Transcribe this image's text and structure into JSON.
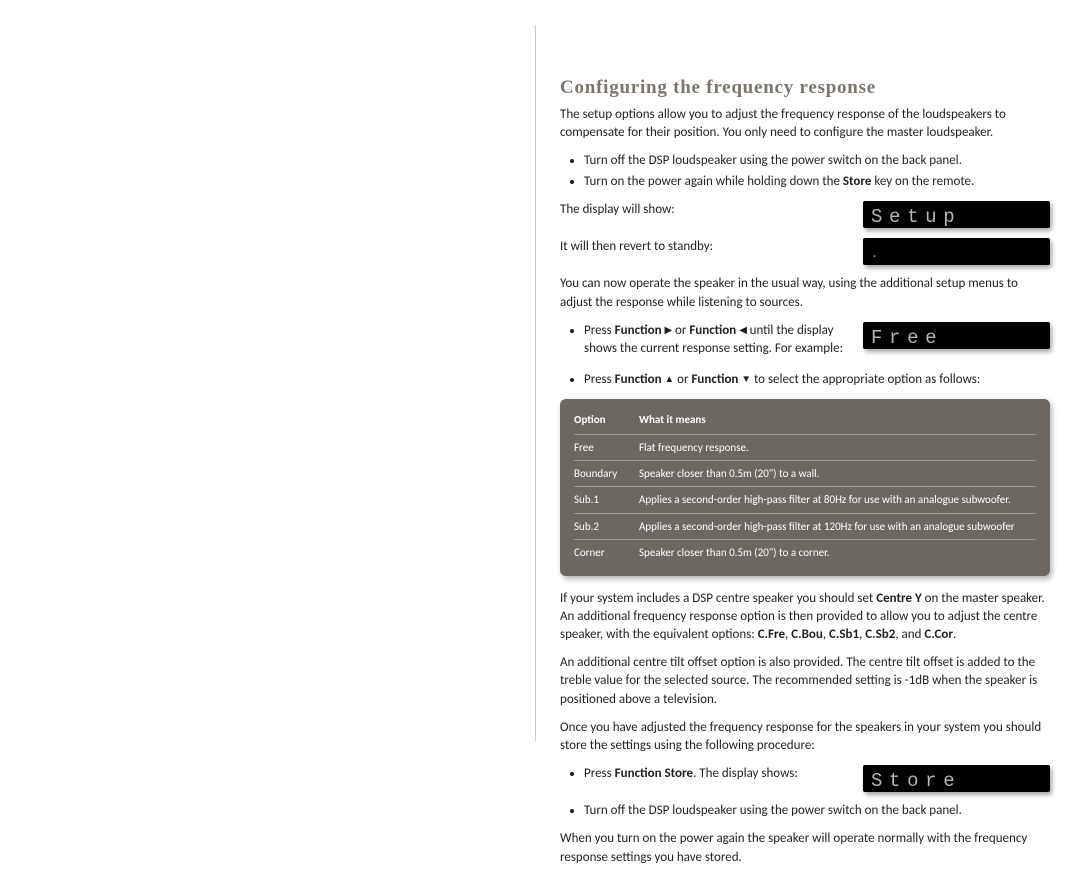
{
  "colors": {
    "heading": "#7c756d",
    "text": "#231f20",
    "lcd_bg": "#000000",
    "lcd_text": "#b8b4ae",
    "table_bg": "#6d6761",
    "table_text": "#ffffff",
    "table_line": "#a09a94",
    "vline": "#cfc9c3"
  },
  "heading": "Configuring the frequency response",
  "intro": "The setup options allow you to adjust the frequency response of the loudspeakers to compensate for their position. You only need to configure the master loudspeaker.",
  "step1_a": "Turn off the DSP loudspeaker using the power switch on the back panel.",
  "step1_b_lead": "Turn on the power again while holding down the ",
  "step1_b_bold": "Store",
  "step1_b_tail": " key on the remote.",
  "display_will_show": "The display will show:",
  "lcd_setup": "Setup",
  "revert": "It will then revert to standby:",
  "lcd_dot": ".",
  "operate": "You can now operate the speaker in the usual way, using the additional setup menus to adjust the response while listening to sources.",
  "press_fn_lr_a": "Press ",
  "press_fn_lr_b": "Function",
  "press_fn_lr_c": " or ",
  "press_fn_lr_d": "Function",
  "press_fn_lr_e": " until the display shows the current response setting. For example:",
  "lcd_free": "Free",
  "press_fn_ud_a": "Press ",
  "press_fn_ud_b": "Function",
  "press_fn_ud_c": " or ",
  "press_fn_ud_d": "Function",
  "press_fn_ud_e": " to select the appropriate option as follows:",
  "table": {
    "header_col1": "Option",
    "header_col2": "What it means",
    "rows": [
      {
        "option": "Free",
        "meaning": "Flat frequency response."
      },
      {
        "option": "Boundary",
        "meaning": "Speaker closer than 0.5m (20\") to a wall."
      },
      {
        "option": "Sub.1",
        "meaning": "Applies a second-order high-pass filter at 80Hz for use with an analogue subwoofer."
      },
      {
        "option": "Sub.2",
        "meaning": "Applies a second-order high-pass filter at 120Hz for use with an analogue subwoofer"
      },
      {
        "option": "Corner",
        "meaning": "Speaker closer than 0.5m (20\") to a corner."
      }
    ]
  },
  "centre_a": "If your system includes a DSP centre speaker you should set ",
  "centre_b": "Centre Y",
  "centre_c": " on the master speaker. An additional frequency response option is then provided to allow you to adjust the centre speaker, with the equivalent options: ",
  "centre_opts": {
    "o1": "C.Fre",
    "o2": "C.Bou",
    "o3": "C.Sb1",
    "o4": "C.Sb2",
    "o5": "C.Cor"
  },
  "centre_d": ", and ",
  "centre_e": ".",
  "tilt": "An additional centre tilt offset option is also provided. The centre tilt offset is added to the treble value for the selected source. The recommended setting is -1dB when the speaker is positioned above a television.",
  "store_intro": "Once you have adjusted the frequency response for the speakers in your system you should store the settings using the following procedure:",
  "press_store_a": "Press ",
  "press_store_b": "Function Store",
  "press_store_c": ". The display shows:",
  "lcd_store": "Store",
  "turnoff2": "Turn off the DSP loudspeaker using the power switch on the back panel.",
  "final": "When you turn on the power again the speaker will operate normally with the frequency response settings you have stored."
}
